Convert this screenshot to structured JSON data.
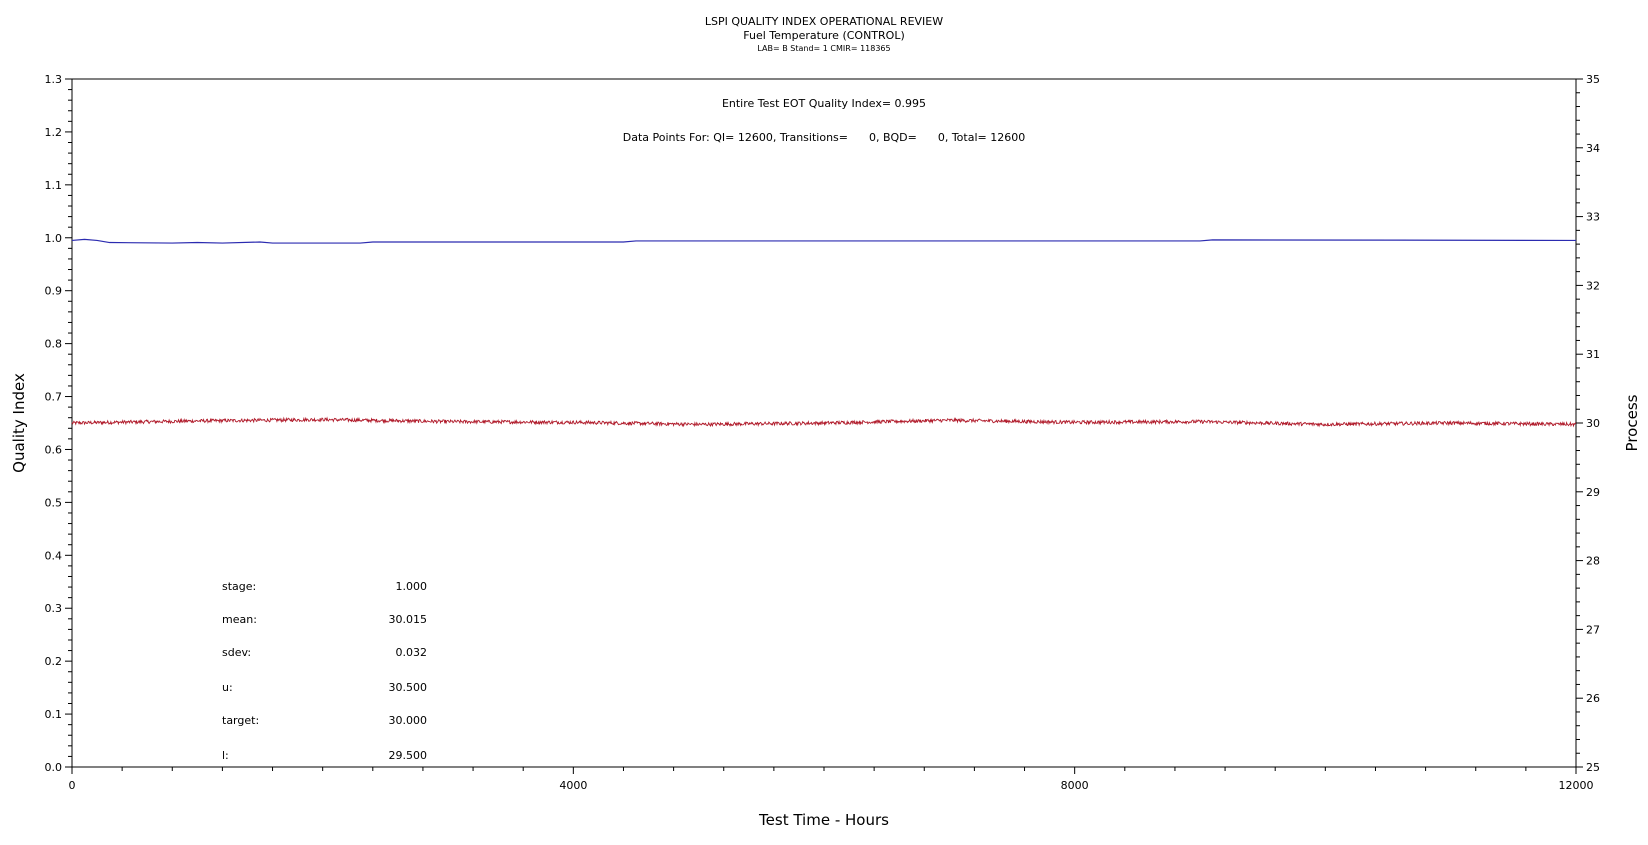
{
  "header": {
    "title": "LSPI QUALITY INDEX OPERATIONAL REVIEW",
    "subtitle": "Fuel Temperature (CONTROL)",
    "info": "LAB= B Stand= 1 CMIR= 118365"
  },
  "annotations": {
    "quality_index": "Entire Test EOT Quality Index=   0.995",
    "data_points": "Data Points For: QI= 12600, Transitions=      0, BQD=      0, Total= 12600"
  },
  "stats": [
    {
      "label": "stage:",
      "value": "1.000"
    },
    {
      "label": "mean:",
      "value": "30.015"
    },
    {
      "label": "sdev:",
      "value": "0.032"
    },
    {
      "label": "u:",
      "value": "30.500"
    },
    {
      "label": "target:",
      "value": "30.000"
    },
    {
      "label": "l:",
      "value": "29.500"
    }
  ],
  "chart_data": {
    "type": "line",
    "title": "LSPI QUALITY INDEX OPERATIONAL REVIEW",
    "xlabel": "Test Time - Hours",
    "ylabel": "Quality Index",
    "y2label": "Process",
    "xlim": [
      0,
      12000
    ],
    "ylim": [
      0.0,
      1.3
    ],
    "y2lim": [
      25,
      35
    ],
    "xticks": [
      "0",
      "4000",
      "8000",
      "12000"
    ],
    "yticks": [
      "0.0",
      "0.1",
      "0.2",
      "0.3",
      "0.4",
      "0.5",
      "0.6",
      "0.7",
      "0.8",
      "0.9",
      "1.0",
      "1.1",
      "1.2",
      "1.3"
    ],
    "y2ticks": [
      "25",
      "26",
      "27",
      "28",
      "29",
      "30",
      "31",
      "32",
      "33",
      "34",
      "35"
    ],
    "grid": false,
    "series": [
      {
        "axis": "left",
        "color": "#2b2bb0",
        "x": [
          0,
          100,
          200,
          300,
          800,
          1000,
          1200,
          1500,
          1600,
          2300,
          2400,
          4400,
          4500,
          9000,
          9100,
          12000
        ],
        "y": [
          0.995,
          0.997,
          0.995,
          0.991,
          0.99,
          0.991,
          0.99,
          0.992,
          0.99,
          0.99,
          0.992,
          0.992,
          0.994,
          0.994,
          0.996,
          0.995
        ]
      },
      {
        "axis": "right",
        "color": "#b01a2a",
        "x": [
          0,
          1000,
          2000,
          3000,
          4000,
          5000,
          6000,
          7000,
          8000,
          9000,
          10000,
          11000,
          12000
        ],
        "y": [
          30.0,
          30.03,
          30.05,
          30.02,
          30.01,
          29.98,
          30.0,
          30.04,
          30.01,
          30.02,
          29.98,
          30.0,
          29.98
        ],
        "noise": 0.025
      }
    ]
  }
}
